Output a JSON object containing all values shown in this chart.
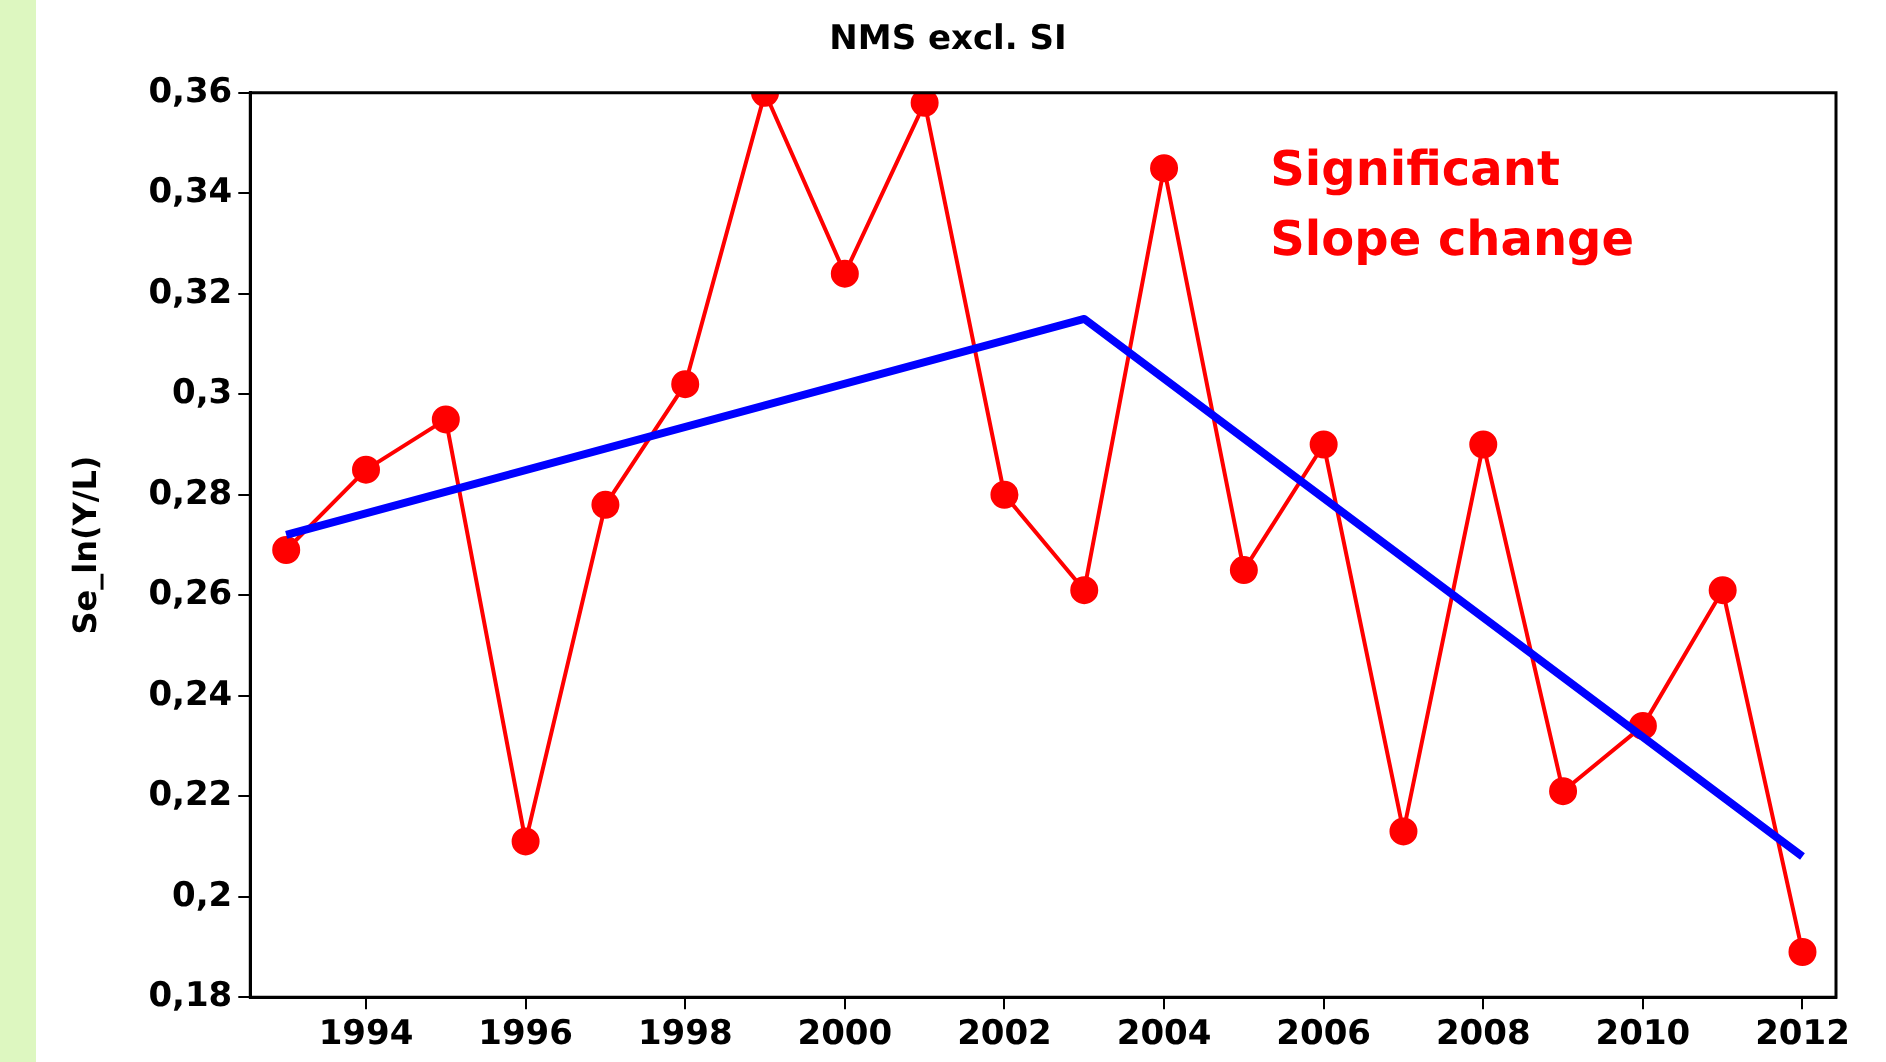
{
  "chart_data": {
    "type": "line",
    "title": "NMS excl. SI",
    "ylabel": "Se_ln(Y/L)",
    "x": [
      1993,
      1994,
      1995,
      1996,
      1997,
      1998,
      1999,
      2000,
      2001,
      2002,
      2003,
      2004,
      2005,
      2006,
      2007,
      2008,
      2009,
      2010,
      2011,
      2012
    ],
    "series": [
      {
        "color": "#ff0000",
        "marker": "circle",
        "values": [
          0.269,
          0.285,
          0.295,
          0.211,
          0.278,
          0.302,
          0.36,
          0.324,
          0.358,
          0.28,
          0.261,
          0.345,
          0.265,
          0.29,
          0.213,
          0.29,
          0.221,
          0.234,
          0.261,
          0.189
        ]
      },
      {
        "type": "line",
        "color": "#0000ff",
        "marker": "none",
        "x": [
          1993,
          2003,
          2012
        ],
        "values": [
          0.272,
          0.315,
          0.208
        ]
      }
    ],
    "xlim": [
      1992.55,
      2012.42
    ],
    "xticks": [
      1994,
      1996,
      1998,
      2000,
      2002,
      2004,
      2006,
      2008,
      2010,
      2012
    ],
    "ylim": [
      0.18,
      0.36
    ],
    "yticks": [
      {
        "value": 0.18,
        "label": "0,18"
      },
      {
        "value": 0.2,
        "label": "0,2"
      },
      {
        "value": 0.22,
        "label": "0,22"
      },
      {
        "value": 0.24,
        "label": "0,24"
      },
      {
        "value": 0.26,
        "label": "0,26"
      },
      {
        "value": 0.28,
        "label": "0,28"
      },
      {
        "value": 0.3,
        "label": "0,3"
      },
      {
        "value": 0.32,
        "label": "0,32"
      },
      {
        "value": 0.34,
        "label": "0,34"
      },
      {
        "value": 0.36,
        "label": "0,36"
      }
    ],
    "grid": false,
    "legend": false,
    "annotations": [
      "Significant Slope change"
    ]
  }
}
